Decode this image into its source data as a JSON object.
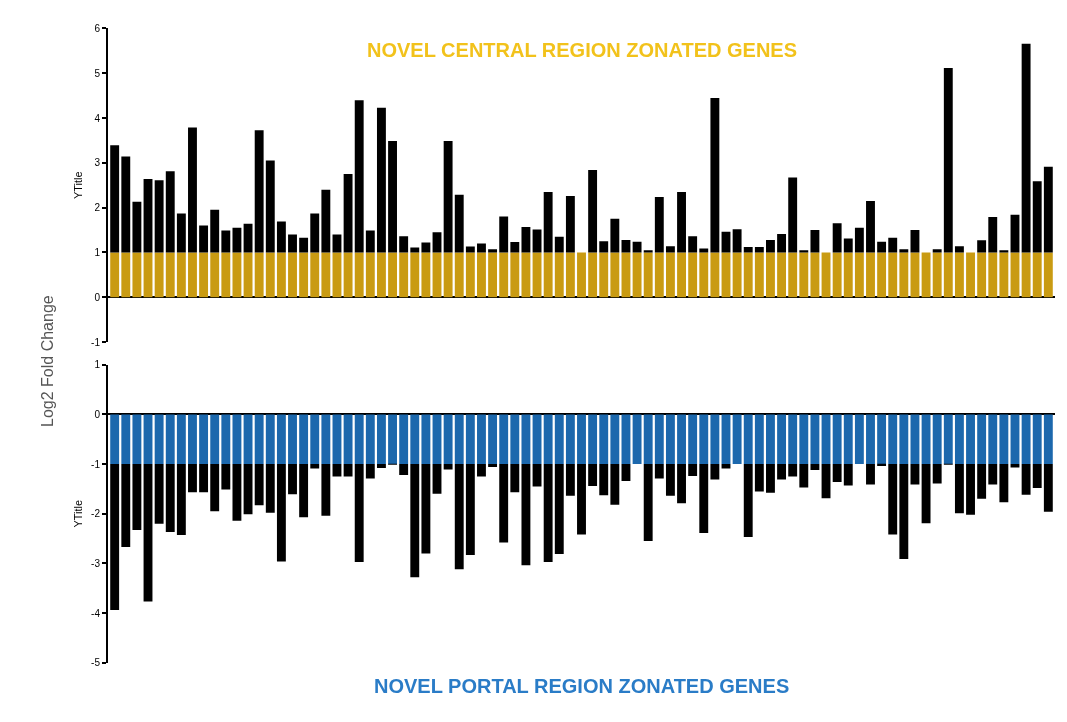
{
  "chart_data": [
    {
      "type": "bar",
      "title": "NOVEL CENTRAL REGION ZONATED GENES",
      "ylabel": "YTitle",
      "annotations": [
        "Log2 Fold Change"
      ],
      "stacked": true,
      "categories": [
        null,
        null,
        null,
        null,
        null,
        null,
        null,
        null,
        null,
        null,
        null,
        null,
        null,
        null,
        null,
        null,
        null,
        null,
        null,
        null,
        null,
        null,
        null,
        null,
        null,
        null,
        null,
        null,
        null,
        null,
        null,
        null,
        null,
        null,
        null,
        null,
        null,
        null,
        null,
        null,
        null,
        null,
        null,
        null,
        null,
        null,
        null,
        null,
        null,
        null,
        null,
        null,
        null,
        null,
        null,
        null,
        null,
        null,
        null,
        null,
        null,
        null,
        null,
        null,
        null,
        null,
        null,
        null,
        null,
        null,
        null,
        null,
        null,
        null,
        null,
        null,
        null,
        null,
        null,
        null,
        null,
        null,
        null,
        null,
        null
      ],
      "series": [
        {
          "color": "#c99b12",
          "values": [
            1,
            1,
            1,
            1,
            1,
            1,
            1,
            1,
            1,
            1,
            1,
            1,
            1,
            1,
            1,
            1,
            1,
            1,
            1,
            1,
            1,
            1,
            1,
            1,
            1,
            1,
            1,
            1,
            1,
            1,
            1,
            1,
            1,
            1,
            1,
            1,
            1,
            1,
            1,
            1,
            1,
            1,
            1,
            1,
            1,
            1,
            1,
            1,
            1,
            1,
            1,
            1,
            1,
            1,
            1,
            1,
            1,
            1,
            1,
            1,
            1,
            1,
            1,
            1,
            1,
            1,
            1,
            1,
            1,
            1,
            1,
            1,
            1,
            1,
            1,
            1,
            1,
            1,
            1,
            1,
            1,
            1,
            1,
            1,
            1
          ]
        },
        {
          "color": "#000000",
          "values": [
            2.39,
            2.14,
            1.13,
            1.64,
            1.61,
            1.81,
            0.87,
            2.79,
            0.6,
            0.95,
            0.49,
            0.55,
            0.64,
            2.73,
            2.05,
            0.69,
            0.4,
            0.33,
            0.87,
            1.4,
            0.4,
            1.75,
            3.4,
            0.49,
            3.23,
            2.49,
            0.36,
            0.11,
            0.22,
            0.45,
            2.49,
            1.29,
            0.13,
            0.2,
            0.07,
            0.8,
            0.23,
            0.57,
            0.51,
            1.35,
            0.35,
            1.26,
            0,
            1.84,
            0.25,
            0.75,
            0.28,
            0.24,
            0.05,
            1.24,
            0.14,
            1.35,
            0.36,
            0.09,
            3.45,
            0.46,
            0.52,
            0.12,
            0.12,
            0.28,
            0.41,
            1.67,
            0.05,
            0.5,
            0,
            0.65,
            0.31,
            0.55,
            1.15,
            0.24,
            0.33,
            0.07,
            0.5,
            0,
            0.07,
            4.12,
            0.14,
            0,
            0.27,
            0.79,
            0.05,
            0.84,
            4.66,
            1.59,
            1.91
          ]
        }
      ],
      "ylim": [
        -1,
        6
      ],
      "yticks": [
        -1,
        0,
        1,
        2,
        3,
        4,
        5,
        6
      ]
    },
    {
      "type": "bar",
      "title": "NOVEL PORTAL REGION ZONATED GENES",
      "ylabel": "YTitle",
      "stacked": true,
      "categories": [
        null,
        null,
        null,
        null,
        null,
        null,
        null,
        null,
        null,
        null,
        null,
        null,
        null,
        null,
        null,
        null,
        null,
        null,
        null,
        null,
        null,
        null,
        null,
        null,
        null,
        null,
        null,
        null,
        null,
        null,
        null,
        null,
        null,
        null,
        null,
        null,
        null,
        null,
        null,
        null,
        null,
        null,
        null,
        null,
        null,
        null,
        null,
        null,
        null,
        null,
        null,
        null,
        null,
        null,
        null,
        null,
        null,
        null,
        null,
        null,
        null,
        null,
        null,
        null,
        null,
        null,
        null,
        null,
        null,
        null,
        null,
        null,
        null,
        null,
        null,
        null,
        null,
        null,
        null,
        null,
        null,
        null,
        null,
        null,
        null
      ],
      "series": [
        {
          "color": "#1c68ad",
          "values": [
            -1,
            -1,
            -1,
            -1,
            -1,
            -1,
            -1,
            -1,
            -1,
            -1,
            -1,
            -1,
            -1,
            -1,
            -1,
            -1,
            -1,
            -1,
            -1,
            -1,
            -1,
            -1,
            -1,
            -1,
            -1,
            -1,
            -1,
            -1,
            -1,
            -1,
            -1,
            -1,
            -1,
            -1,
            -1,
            -1,
            -1,
            -1,
            -1,
            -1,
            -1,
            -1,
            -1,
            -1,
            -1,
            -1,
            -1,
            -1,
            -1,
            -1,
            -1,
            -1,
            -1,
            -1,
            -1,
            -1,
            -1,
            -1,
            -1,
            -1,
            -1,
            -1,
            -1,
            -1,
            -1,
            -1,
            -1,
            -1,
            -1,
            -1,
            -1,
            -1,
            -1,
            -1,
            -1,
            -1,
            -1,
            -1,
            -1,
            -1,
            -1,
            -1,
            -1,
            -1,
            -1
          ]
        },
        {
          "color": "#000000",
          "values": [
            -2.94,
            -1.67,
            -1.33,
            -2.77,
            -1.2,
            -1.37,
            -1.43,
            -0.57,
            -0.57,
            -0.95,
            -0.51,
            -1.14,
            -1.01,
            -0.83,
            -0.98,
            -1.96,
            -0.61,
            -1.07,
            -0.09,
            -1.04,
            -0.25,
            -0.25,
            -1.97,
            -0.29,
            -0.08,
            -0.01,
            -0.22,
            -2.28,
            -1.8,
            -0.6,
            -0.11,
            -2.12,
            -1.83,
            -0.25,
            -0.06,
            -1.58,
            -0.57,
            -2.04,
            -0.45,
            -1.97,
            -1.81,
            -0.64,
            -1.42,
            -0.44,
            -0.63,
            -0.82,
            -0.34,
            0,
            -1.55,
            -0.29,
            -0.64,
            -0.79,
            -0.24,
            -1.39,
            -0.31,
            -0.09,
            0,
            -1.47,
            -0.55,
            -0.58,
            -0.31,
            -0.25,
            -0.47,
            -0.12,
            -0.69,
            -0.36,
            -0.43,
            0,
            -0.41,
            -0.04,
            -1.42,
            -1.91,
            -0.41,
            -1.19,
            -0.39,
            -0.01,
            -0.99,
            -1.02,
            -0.7,
            -0.41,
            -0.77,
            -0.07,
            -0.62,
            -0.48,
            -0.96
          ]
        }
      ],
      "ylim": [
        -5,
        1
      ],
      "yticks": [
        1,
        0,
        -1,
        -2,
        -3,
        -4,
        -5
      ]
    }
  ]
}
